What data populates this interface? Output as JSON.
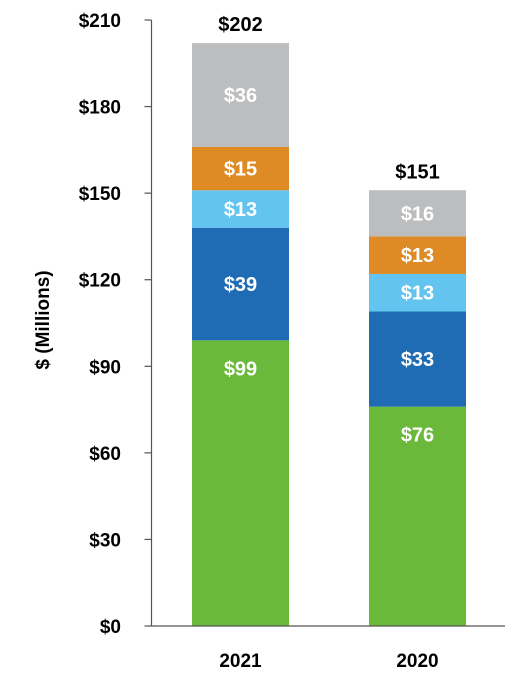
{
  "chart_data": {
    "type": "bar",
    "stacked": true,
    "categories": [
      "2021",
      "2020"
    ],
    "series": [
      {
        "values": [
          99,
          76
        ],
        "labels": [
          "$99",
          "$76"
        ],
        "color": "#6ab93a"
      },
      {
        "values": [
          39,
          33
        ],
        "labels": [
          "$39",
          "$33"
        ],
        "color": "#1f6cb5"
      },
      {
        "values": [
          13,
          13
        ],
        "labels": [
          "$13",
          "$13"
        ],
        "color": "#63c4ef"
      },
      {
        "values": [
          15,
          13
        ],
        "labels": [
          "$15",
          "$13"
        ],
        "color": "#de8a25"
      },
      {
        "values": [
          36,
          16
        ],
        "labels": [
          "$36",
          "$16"
        ],
        "color": "#bcbdbf"
      }
    ],
    "totals": [
      "$202",
      "$151"
    ],
    "ylabel": "$ (Millions)",
    "ylim": [
      0,
      210
    ],
    "yticks": [
      {
        "value": 0,
        "label": "$0"
      },
      {
        "value": 30,
        "label": "$30"
      },
      {
        "value": 60,
        "label": "$60"
      },
      {
        "value": 90,
        "label": "$90"
      },
      {
        "value": 120,
        "label": "$120"
      },
      {
        "value": 150,
        "label": "$150"
      },
      {
        "value": 180,
        "label": "$180"
      },
      {
        "value": 210,
        "label": "$210"
      }
    ],
    "grid": false,
    "legend": "none"
  }
}
